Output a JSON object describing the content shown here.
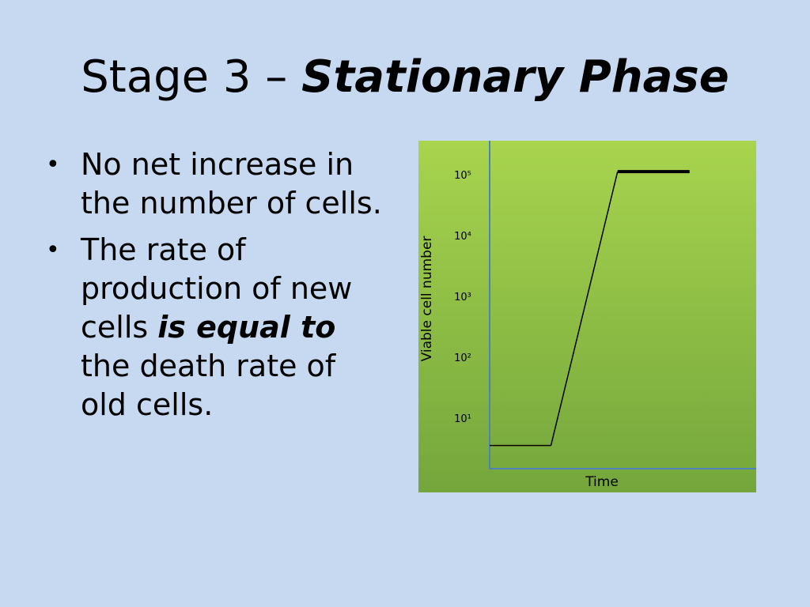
{
  "slide": {
    "title_prefix": "Stage 3 – ",
    "title_emphasis": "Stationary Phase",
    "bullets": [
      {
        "text": "No net increase in the number of cells."
      },
      {
        "text_before": "The rate of production of new cells ",
        "emphasis": "is equal to",
        "text_after": " the death rate of old cells."
      }
    ]
  },
  "colors": {
    "background": "#c6d9f1",
    "chart_fill_top": "#a8d44e",
    "chart_fill_bottom": "#74a63c",
    "axis": "#4f81bd"
  },
  "chart_data": {
    "type": "line",
    "xlabel": "Time",
    "ylabel": "Viable cell number",
    "y_scale": "log",
    "y_ticks": [
      {
        "label": "10¹",
        "exp": 1
      },
      {
        "label": "10²",
        "exp": 2
      },
      {
        "label": "10³",
        "exp": 3
      },
      {
        "label": "10⁴",
        "exp": 4
      },
      {
        "label": "10⁵",
        "exp": 5
      }
    ],
    "series": [
      {
        "segments": [
          {
            "from": [
              0.0,
              0.55
            ],
            "to": [
              0.23,
              0.55
            ]
          },
          {
            "from": [
              0.23,
              0.55
            ],
            "to": [
              0.48,
              5.05
            ]
          },
          {
            "from": [
              0.48,
              5.05
            ],
            "to": [
              0.75,
              5.05
            ]
          }
        ]
      }
    ]
  }
}
